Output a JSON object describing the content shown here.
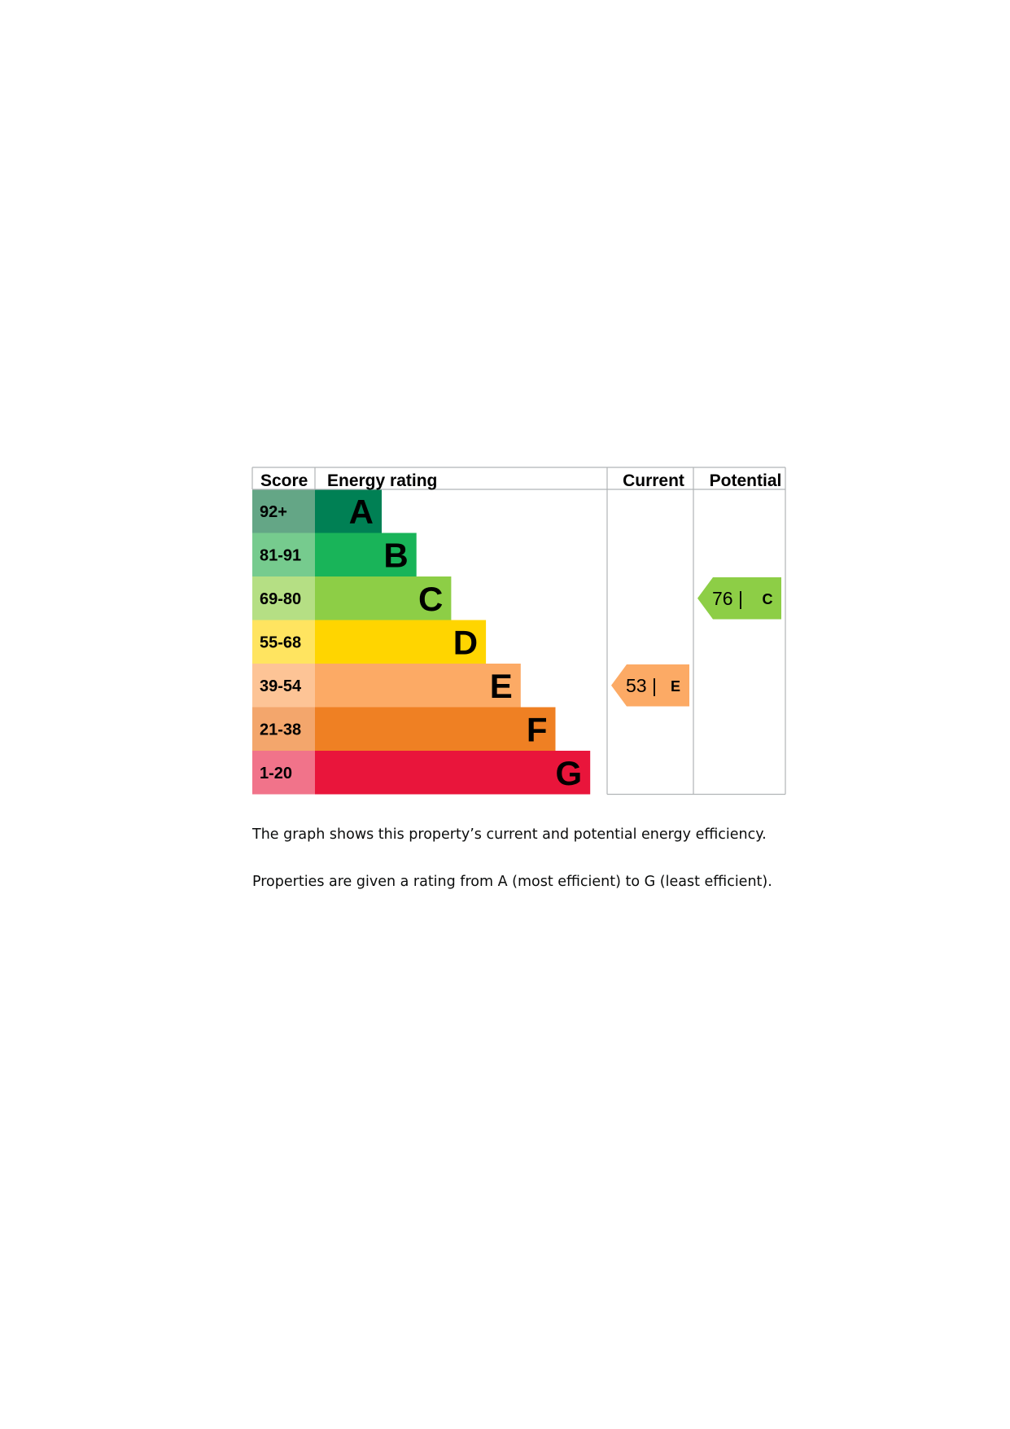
{
  "chart_data": {
    "type": "bar",
    "headers": {
      "score": "Score",
      "rating": "Energy rating",
      "current": "Current",
      "potential": "Potential"
    },
    "bands": [
      {
        "letter": "A",
        "range": "92+",
        "color": "#008054",
        "score_color": "#64a686",
        "letter_color": "#000000"
      },
      {
        "letter": "B",
        "range": "81-91",
        "color": "#19b459",
        "score_color": "#76cb8e",
        "letter_color": "#000000"
      },
      {
        "letter": "C",
        "range": "69-80",
        "color": "#8dce46",
        "score_color": "#b5df84",
        "letter_color": "#000000"
      },
      {
        "letter": "D",
        "range": "55-68",
        "color": "#ffd500",
        "score_color": "#ffe460",
        "letter_color": "#000000"
      },
      {
        "letter": "E",
        "range": "39-54",
        "color": "#fcaa65",
        "score_color": "#fdc496",
        "letter_color": "#000000"
      },
      {
        "letter": "F",
        "range": "21-38",
        "color": "#ef8023",
        "score_color": "#f3a66c",
        "letter_color": "#000000"
      },
      {
        "letter": "G",
        "range": "1-20",
        "color": "#e9153b",
        "score_color": "#f1738a",
        "letter_color": "#000000"
      }
    ],
    "current": {
      "score": 53,
      "score_text": "53 |",
      "rating": "E",
      "color": "#fcaa65"
    },
    "potential": {
      "score": 76,
      "score_text": "76 |",
      "rating": "C",
      "color": "#8dce46"
    },
    "grid_color": "#b1b4b6"
  },
  "captions": [
    "The graph shows this property’s current and potential energy efficiency.",
    "Properties are given a rating from A (most efficient) to G (least efficient)."
  ]
}
